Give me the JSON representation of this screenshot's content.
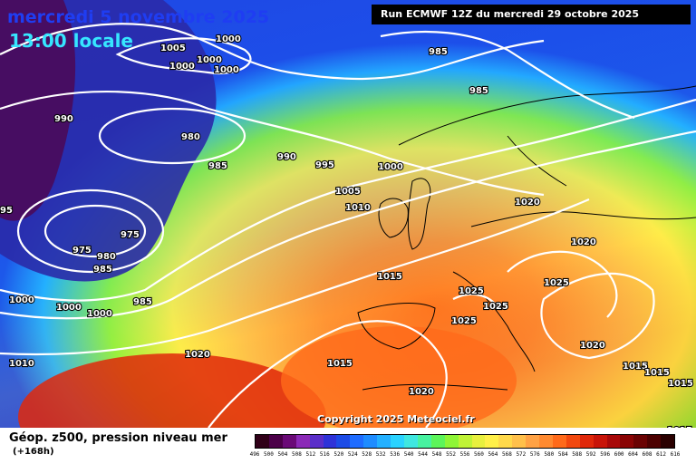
{
  "header": {
    "date": "mercredi 5 novembre 2025",
    "time": "13:00 locale",
    "run": "Run ECMWF 12Z du mercredi 29 octobre 2025",
    "copyright": "Copyright 2025 Meteociel.fr"
  },
  "footer": {
    "field": "Géop. z500, pression niveau mer",
    "lead": "(+168h)"
  },
  "legend": {
    "values": [
      "496",
      "500",
      "504",
      "508",
      "512",
      "516",
      "520",
      "524",
      "528",
      "532",
      "536",
      "540",
      "544",
      "548",
      "552",
      "556",
      "560",
      "564",
      "568",
      "572",
      "576",
      "580",
      "584",
      "588",
      "592",
      "596",
      "600",
      "604",
      "608",
      "612",
      "616"
    ],
    "colors": [
      "#300018",
      "#4b0048",
      "#6a0a77",
      "#8b2ab7",
      "#5a2ec9",
      "#2e32d8",
      "#1c4be6",
      "#1f6cff",
      "#1e8cff",
      "#23b0ff",
      "#2ad3ff",
      "#3fe7e0",
      "#47f2a0",
      "#5cf55a",
      "#8ef536",
      "#c0f336",
      "#e8f03e",
      "#fff048",
      "#ffd94a",
      "#ffc04a",
      "#ffa244",
      "#ff8a30",
      "#ff6a1a",
      "#f2480e",
      "#e0280a",
      "#c81408",
      "#a80808",
      "#8a0404",
      "#6a0202",
      "#4c0000",
      "#2a0000"
    ]
  },
  "isobar_labels": [
    {
      "text": "1000"
    },
    {
      "text": "1005"
    },
    {
      "text": "1000"
    },
    {
      "text": "1000"
    },
    {
      "text": "1000"
    },
    {
      "text": "985"
    },
    {
      "text": "985"
    },
    {
      "text": "990"
    },
    {
      "text": "980"
    },
    {
      "text": "985"
    },
    {
      "text": "990"
    },
    {
      "text": "995"
    },
    {
      "text": "1000"
    },
    {
      "text": "1005"
    },
    {
      "text": "1010"
    },
    {
      "text": "1020"
    },
    {
      "text": "975"
    },
    {
      "text": "975"
    },
    {
      "text": "980"
    },
    {
      "text": "985"
    },
    {
      "text": "985"
    },
    {
      "text": "95"
    },
    {
      "text": "1000"
    },
    {
      "text": "1000"
    },
    {
      "text": "1000"
    },
    {
      "text": "1010"
    },
    {
      "text": "1020"
    },
    {
      "text": "1015"
    },
    {
      "text": "1015"
    },
    {
      "text": "1025"
    },
    {
      "text": "1025"
    },
    {
      "text": "1025"
    },
    {
      "text": "1025"
    },
    {
      "text": "1020"
    },
    {
      "text": "1015"
    },
    {
      "text": "1015"
    },
    {
      "text": "1015"
    },
    {
      "text": "1020"
    },
    {
      "text": "1015"
    },
    {
      "text": "1020"
    }
  ]
}
